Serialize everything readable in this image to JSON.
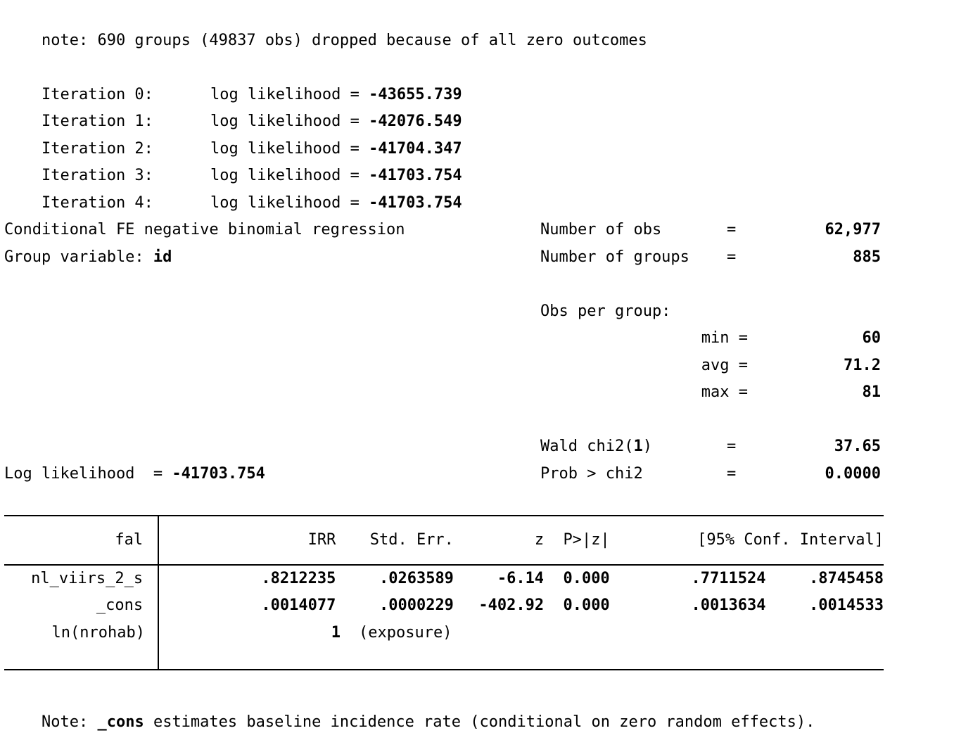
{
  "pre_note": "note: 690 groups (49837 obs) dropped because of all zero outcomes",
  "iterations": [
    {
      "label": "Iteration 0:",
      "prefix": "log likelihood = ",
      "value": "-43655.739"
    },
    {
      "label": "Iteration 1:",
      "prefix": "log likelihood = ",
      "value": "-42076.549"
    },
    {
      "label": "Iteration 2:",
      "prefix": "log likelihood = ",
      "value": "-41704.347"
    },
    {
      "label": "Iteration 3:",
      "prefix": "log likelihood = ",
      "value": "-41703.754"
    },
    {
      "label": "Iteration 4:",
      "prefix": "log likelihood = ",
      "value": "-41703.754"
    }
  ],
  "model": {
    "title": "Conditional FE negative binomial regression",
    "group_variable_label": "Group variable: ",
    "group_variable": "id",
    "log_likelihood_prefix": "Log likelihood  = ",
    "log_likelihood_value": "-41703.754"
  },
  "stats": {
    "number_of_obs": {
      "label": "Number of obs",
      "eq": "=",
      "value": "62,977"
    },
    "number_of_groups": {
      "label": "Number of groups",
      "eq": "=",
      "value": "885"
    },
    "obs_per_group_label": "Obs per group:",
    "min": {
      "label": "min =",
      "value": "60"
    },
    "avg": {
      "label": "avg =",
      "value": "71.2"
    },
    "max": {
      "label": "max =",
      "value": "81"
    },
    "wald": {
      "label_pre": "Wald chi2(",
      "df": "1",
      "label_post": ")",
      "eq": "=",
      "value": "37.65"
    },
    "prob": {
      "label": "Prob > chi2",
      "eq": "=",
      "value": "0.0000"
    }
  },
  "table": {
    "headers": {
      "depvar": "fal",
      "irr": "IRR",
      "std_err": "Std. Err.",
      "z": "z",
      "p": "P>|z|",
      "ci": "[95% Conf. Interval]"
    },
    "rows": [
      {
        "var": "nl_viirs_2_s",
        "irr": ".8212235",
        "std_err": ".0263589",
        "z": "-6.14",
        "p": "0.000",
        "ci_low": ".7711524",
        "ci_high": ".8745458"
      },
      {
        "var": "_cons",
        "irr": ".0014077",
        "std_err": ".0000229",
        "z": "-402.92",
        "p": "0.000",
        "ci_low": ".0013634",
        "ci_high": ".0014533"
      },
      {
        "var": "ln(nrohab)",
        "irr": "1",
        "note": "(exposure)"
      }
    ]
  },
  "footnote": {
    "pre": "Note: ",
    "bold": "_cons",
    "post": " estimates baseline incidence rate (conditional on zero random effects)."
  }
}
